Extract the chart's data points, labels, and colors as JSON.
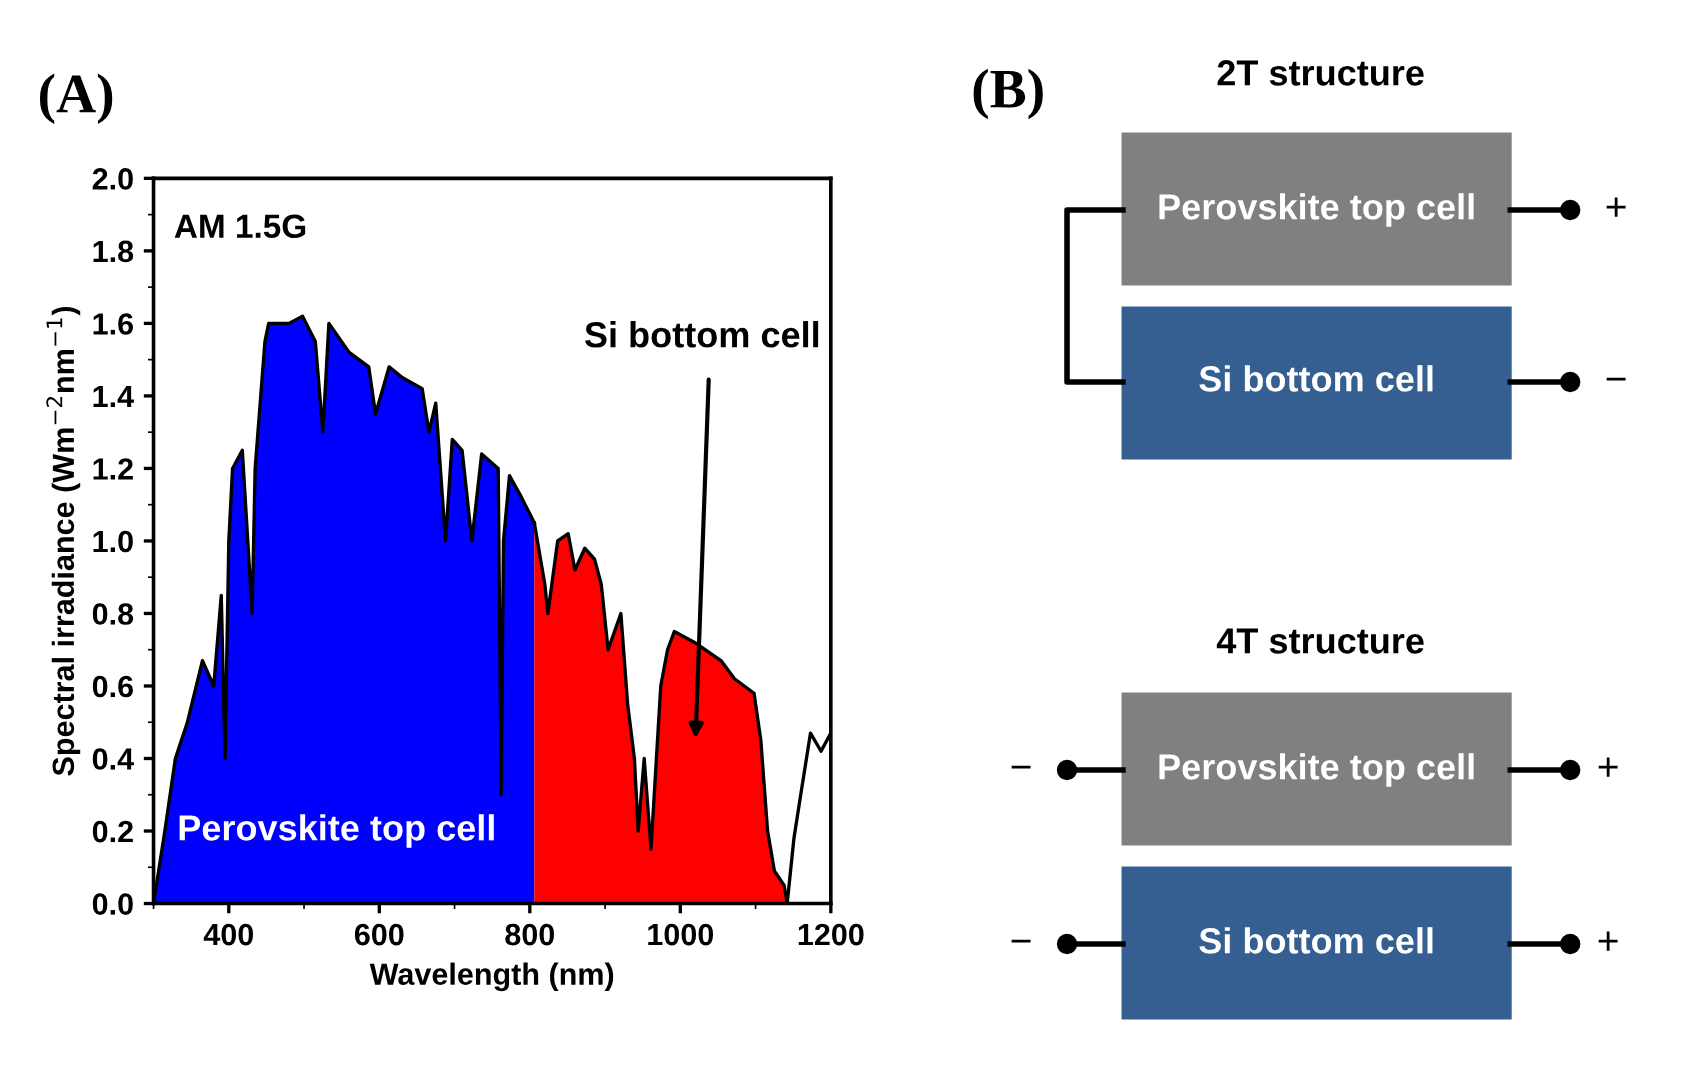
{
  "chart_data": [
    {
      "type": "area",
      "xlabel": "Wavelength (nm)",
      "ylabel": "Spectral irradiance (Wm$^{−2}$nm$^{−1}$)",
      "xlim": [
        300,
        1200
      ],
      "xticks": [
        400,
        600,
        800,
        1000,
        1200
      ],
      "ylim": [
        0,
        2.0
      ],
      "yticks": [
        {
          "value": 0,
          "label": "0.0"
        },
        0.2,
        0.4,
        0.6,
        0.8,
        {
          "value": 1,
          "label": "1.0"
        },
        1.2,
        1.4,
        1.6,
        1.8,
        {
          "value": 2,
          "label": "2.0"
        }
      ],
      "grid": false,
      "series": [
        {
          "type": "area",
          "color": "#0000ff",
          "x": [
            300,
            315,
            329,
            345,
            365,
            380,
            390,
            395,
            400,
            405,
            418,
            431,
            435,
            448,
            453,
            480,
            498,
            515,
            525,
            533,
            560,
            586,
            595,
            613,
            631,
            657,
            666,
            675,
            688,
            697,
            710,
            723,
            736,
            758,
            762,
            765,
            773,
            789,
            806
          ],
          "values": [
            0,
            0.2,
            0.4,
            0.5,
            0.67,
            0.6,
            0.85,
            0.4,
            1.0,
            1.2,
            1.25,
            0.8,
            1.2,
            1.55,
            1.6,
            1.6,
            1.62,
            1.55,
            1.3,
            1.6,
            1.52,
            1.48,
            1.35,
            1.48,
            1.45,
            1.42,
            1.3,
            1.38,
            1.0,
            1.28,
            1.25,
            1.0,
            1.24,
            1.2,
            0.3,
            1.0,
            1.18,
            1.12,
            1.05
          ]
        },
        {
          "type": "area",
          "color": "#ff0000",
          "x": [
            806,
            820,
            824,
            837,
            851,
            860,
            873,
            886,
            895,
            904,
            921,
            930,
            939,
            944,
            952,
            961,
            974,
            983,
            992,
            1019,
            1054,
            1072,
            1098,
            1107,
            1116,
            1125,
            1138,
            1142
          ],
          "values": [
            1.05,
            0.88,
            0.8,
            1.0,
            1.02,
            0.92,
            0.98,
            0.95,
            0.88,
            0.7,
            0.8,
            0.55,
            0.4,
            0.2,
            0.4,
            0.15,
            0.6,
            0.7,
            0.75,
            0.72,
            0.67,
            0.62,
            0.58,
            0.45,
            0.2,
            0.09,
            0.05,
            0
          ]
        },
        {
          "type": "line",
          "color": "#000000",
          "x": [
            1142,
            1151,
            1160,
            1173,
            1187,
            1200
          ],
          "values": [
            0,
            0.18,
            0.3,
            0.47,
            0.42,
            0.47
          ]
        }
      ],
      "annotations": [
        "(A)",
        "AM 1.5G",
        "Perovskite top cell",
        "Si bottom cell"
      ]
    },
    {
      "type": "other",
      "annotations": [
        "(B)",
        "2T structure",
        "Perovskite top cell",
        "Si bottom cell",
        "+",
        "−",
        "4T structure",
        "Perovskite top cell",
        "Si bottom cell",
        "−",
        "+",
        "−",
        "+"
      ]
    }
  ]
}
